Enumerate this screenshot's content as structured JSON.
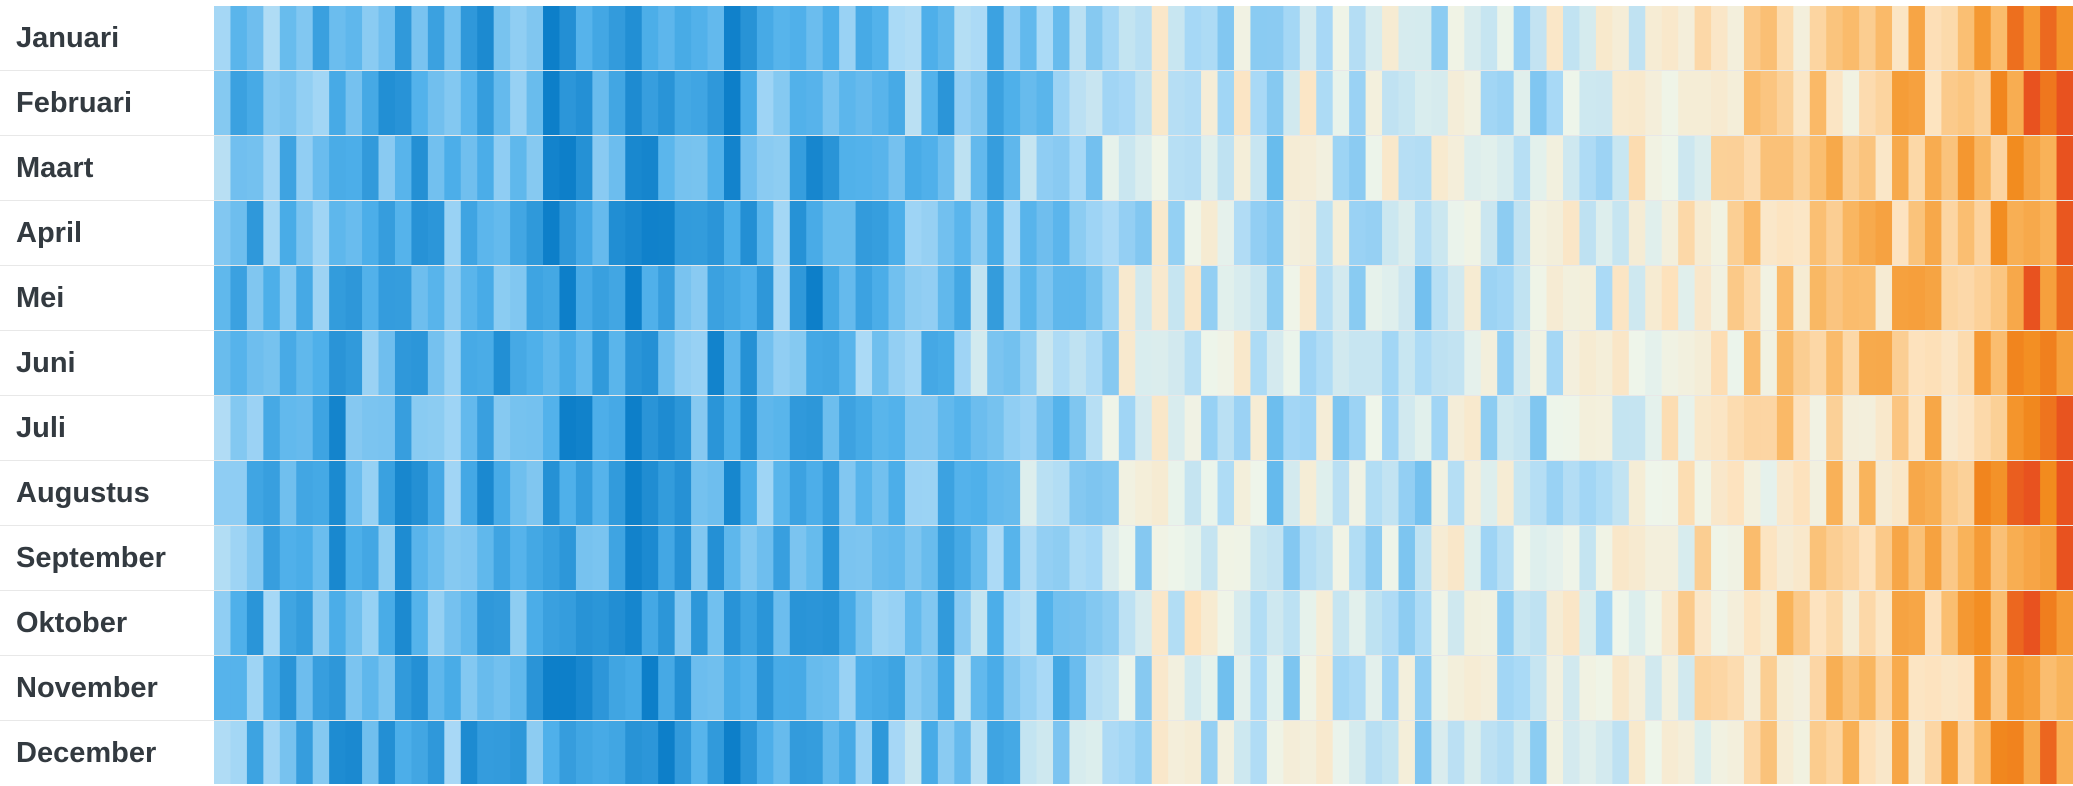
{
  "chart_data": {
    "type": "heatmap",
    "title": "",
    "xlabel": "",
    "ylabel": "",
    "rows": [
      "Januari",
      "Februari",
      "Maart",
      "April",
      "Mei",
      "Juni",
      "Juli",
      "Augustus",
      "September",
      "Oktober",
      "November",
      "December"
    ],
    "x": "columns ordered chronologically (oldest left, most recent right); x-axis not labeled",
    "column_count": 113,
    "value_scale": "relative temperature anomaly, -1 (coldest, dark blue) to +1 (warmest, red-orange)",
    "colormap": {
      "cold_dark": "#0d7fc9",
      "cold": "#4fb0ea",
      "cool": "#a9d9f6",
      "neutral": "#eef5ea",
      "mild": "#fde3bf",
      "warm": "#f9b35a",
      "hot": "#f28b1e",
      "hottest": "#e8521f"
    },
    "row_trend": {
      "description": "each column's base anomaly; per-month noise added",
      "base_anomaly": [
        -0.35,
        -0.45,
        -0.55,
        -0.5,
        -0.6,
        -0.5,
        -0.55,
        -0.7,
        -0.65,
        -0.55,
        -0.6,
        -0.7,
        -0.6,
        -0.55,
        -0.5,
        -0.65,
        -0.75,
        -0.6,
        -0.55,
        -0.6,
        -0.8,
        -0.85,
        -0.7,
        -0.6,
        -0.65,
        -0.8,
        -0.85,
        -0.75,
        -0.6,
        -0.55,
        -0.7,
        -0.8,
        -0.65,
        -0.55,
        -0.5,
        -0.6,
        -0.75,
        -0.6,
        -0.45,
        -0.5,
        -0.55,
        -0.45,
        -0.4,
        -0.5,
        -0.55,
        -0.4,
        -0.35,
        -0.5,
        -0.4,
        -0.3,
        -0.35,
        -0.45,
        -0.3,
        -0.25,
        -0.2,
        -0.1,
        -0.15,
        -0.05,
        -0.1,
        0.0,
        -0.1,
        -0.2,
        -0.05,
        -0.1,
        -0.25,
        -0.15,
        -0.05,
        -0.1,
        -0.15,
        -0.2,
        -0.1,
        -0.05,
        -0.15,
        -0.2,
        -0.1,
        0.0,
        -0.05,
        -0.15,
        -0.1,
        -0.2,
        -0.15,
        -0.05,
        0.0,
        -0.1,
        -0.05,
        0.05,
        0.1,
        0.05,
        0.1,
        0.15,
        0.15,
        0.1,
        0.2,
        0.25,
        0.2,
        0.3,
        0.25,
        0.3,
        0.35,
        0.3,
        0.35,
        0.4,
        0.45,
        0.4,
        0.5,
        0.45,
        0.5,
        0.55,
        0.6,
        0.7,
        0.85,
        0.75,
        0.8
      ]
    }
  },
  "labels": {
    "rows": [
      "Januari",
      "Februari",
      "Maart",
      "April",
      "Mei",
      "Juni",
      "Juli",
      "Augustus",
      "September",
      "Oktober",
      "November",
      "December"
    ]
  }
}
